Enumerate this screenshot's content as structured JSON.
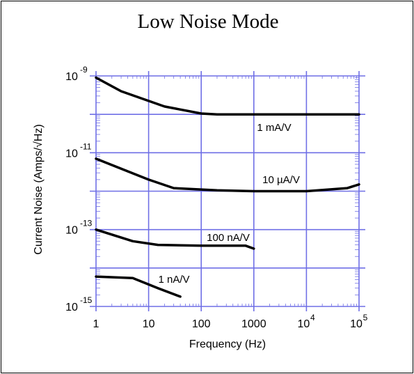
{
  "chart_data": {
    "type": "line",
    "title": "Low Noise Mode",
    "xlabel": "Frequency  (Hz)",
    "ylabel": "Current Noise  (Amps/√Hz)",
    "xscale": "log",
    "yscale": "log",
    "xlim": [
      1,
      100000
    ],
    "ylim": [
      1e-15,
      1e-09
    ],
    "grid": true,
    "x_ticks": [
      {
        "base": "1",
        "exp": ""
      },
      {
        "base": "10",
        "exp": ""
      },
      {
        "base": "100",
        "exp": ""
      },
      {
        "base": "1000",
        "exp": ""
      },
      {
        "base": "10",
        "exp": "4"
      },
      {
        "base": "10",
        "exp": "5"
      }
    ],
    "y_ticks": [
      {
        "base": "10",
        "exp": "-9"
      },
      {
        "base": "10",
        "exp": "-11"
      },
      {
        "base": "10",
        "exp": "-13"
      },
      {
        "base": "10",
        "exp": "-15"
      }
    ],
    "series": [
      {
        "name": "1 mA/V",
        "x": [
          1,
          3,
          20,
          100,
          200,
          1000,
          10000,
          100000
        ],
        "y": [
          9e-10,
          4e-10,
          1.6e-10,
          1.05e-10,
          1e-10,
          1e-10,
          1e-10,
          1e-10
        ]
      },
      {
        "name": "10 µA/V",
        "x": [
          1,
          10,
          30,
          200,
          1000,
          10000,
          60000,
          100000
        ],
        "y": [
          7e-12,
          2e-12,
          1.2e-12,
          1.05e-12,
          1e-12,
          1e-12,
          1.2e-12,
          1.5e-12
        ]
      },
      {
        "name": "100 nA/V",
        "x": [
          1,
          5,
          15,
          100,
          700,
          1000
        ],
        "y": [
          1e-13,
          5e-14,
          4e-14,
          3.8e-14,
          3.8e-14,
          3.2e-14
        ]
      },
      {
        "name": "1 nA/V",
        "x": [
          1,
          5,
          15,
          40
        ],
        "y": [
          6e-15,
          5.5e-15,
          3e-15,
          1.8e-15
        ]
      }
    ]
  }
}
